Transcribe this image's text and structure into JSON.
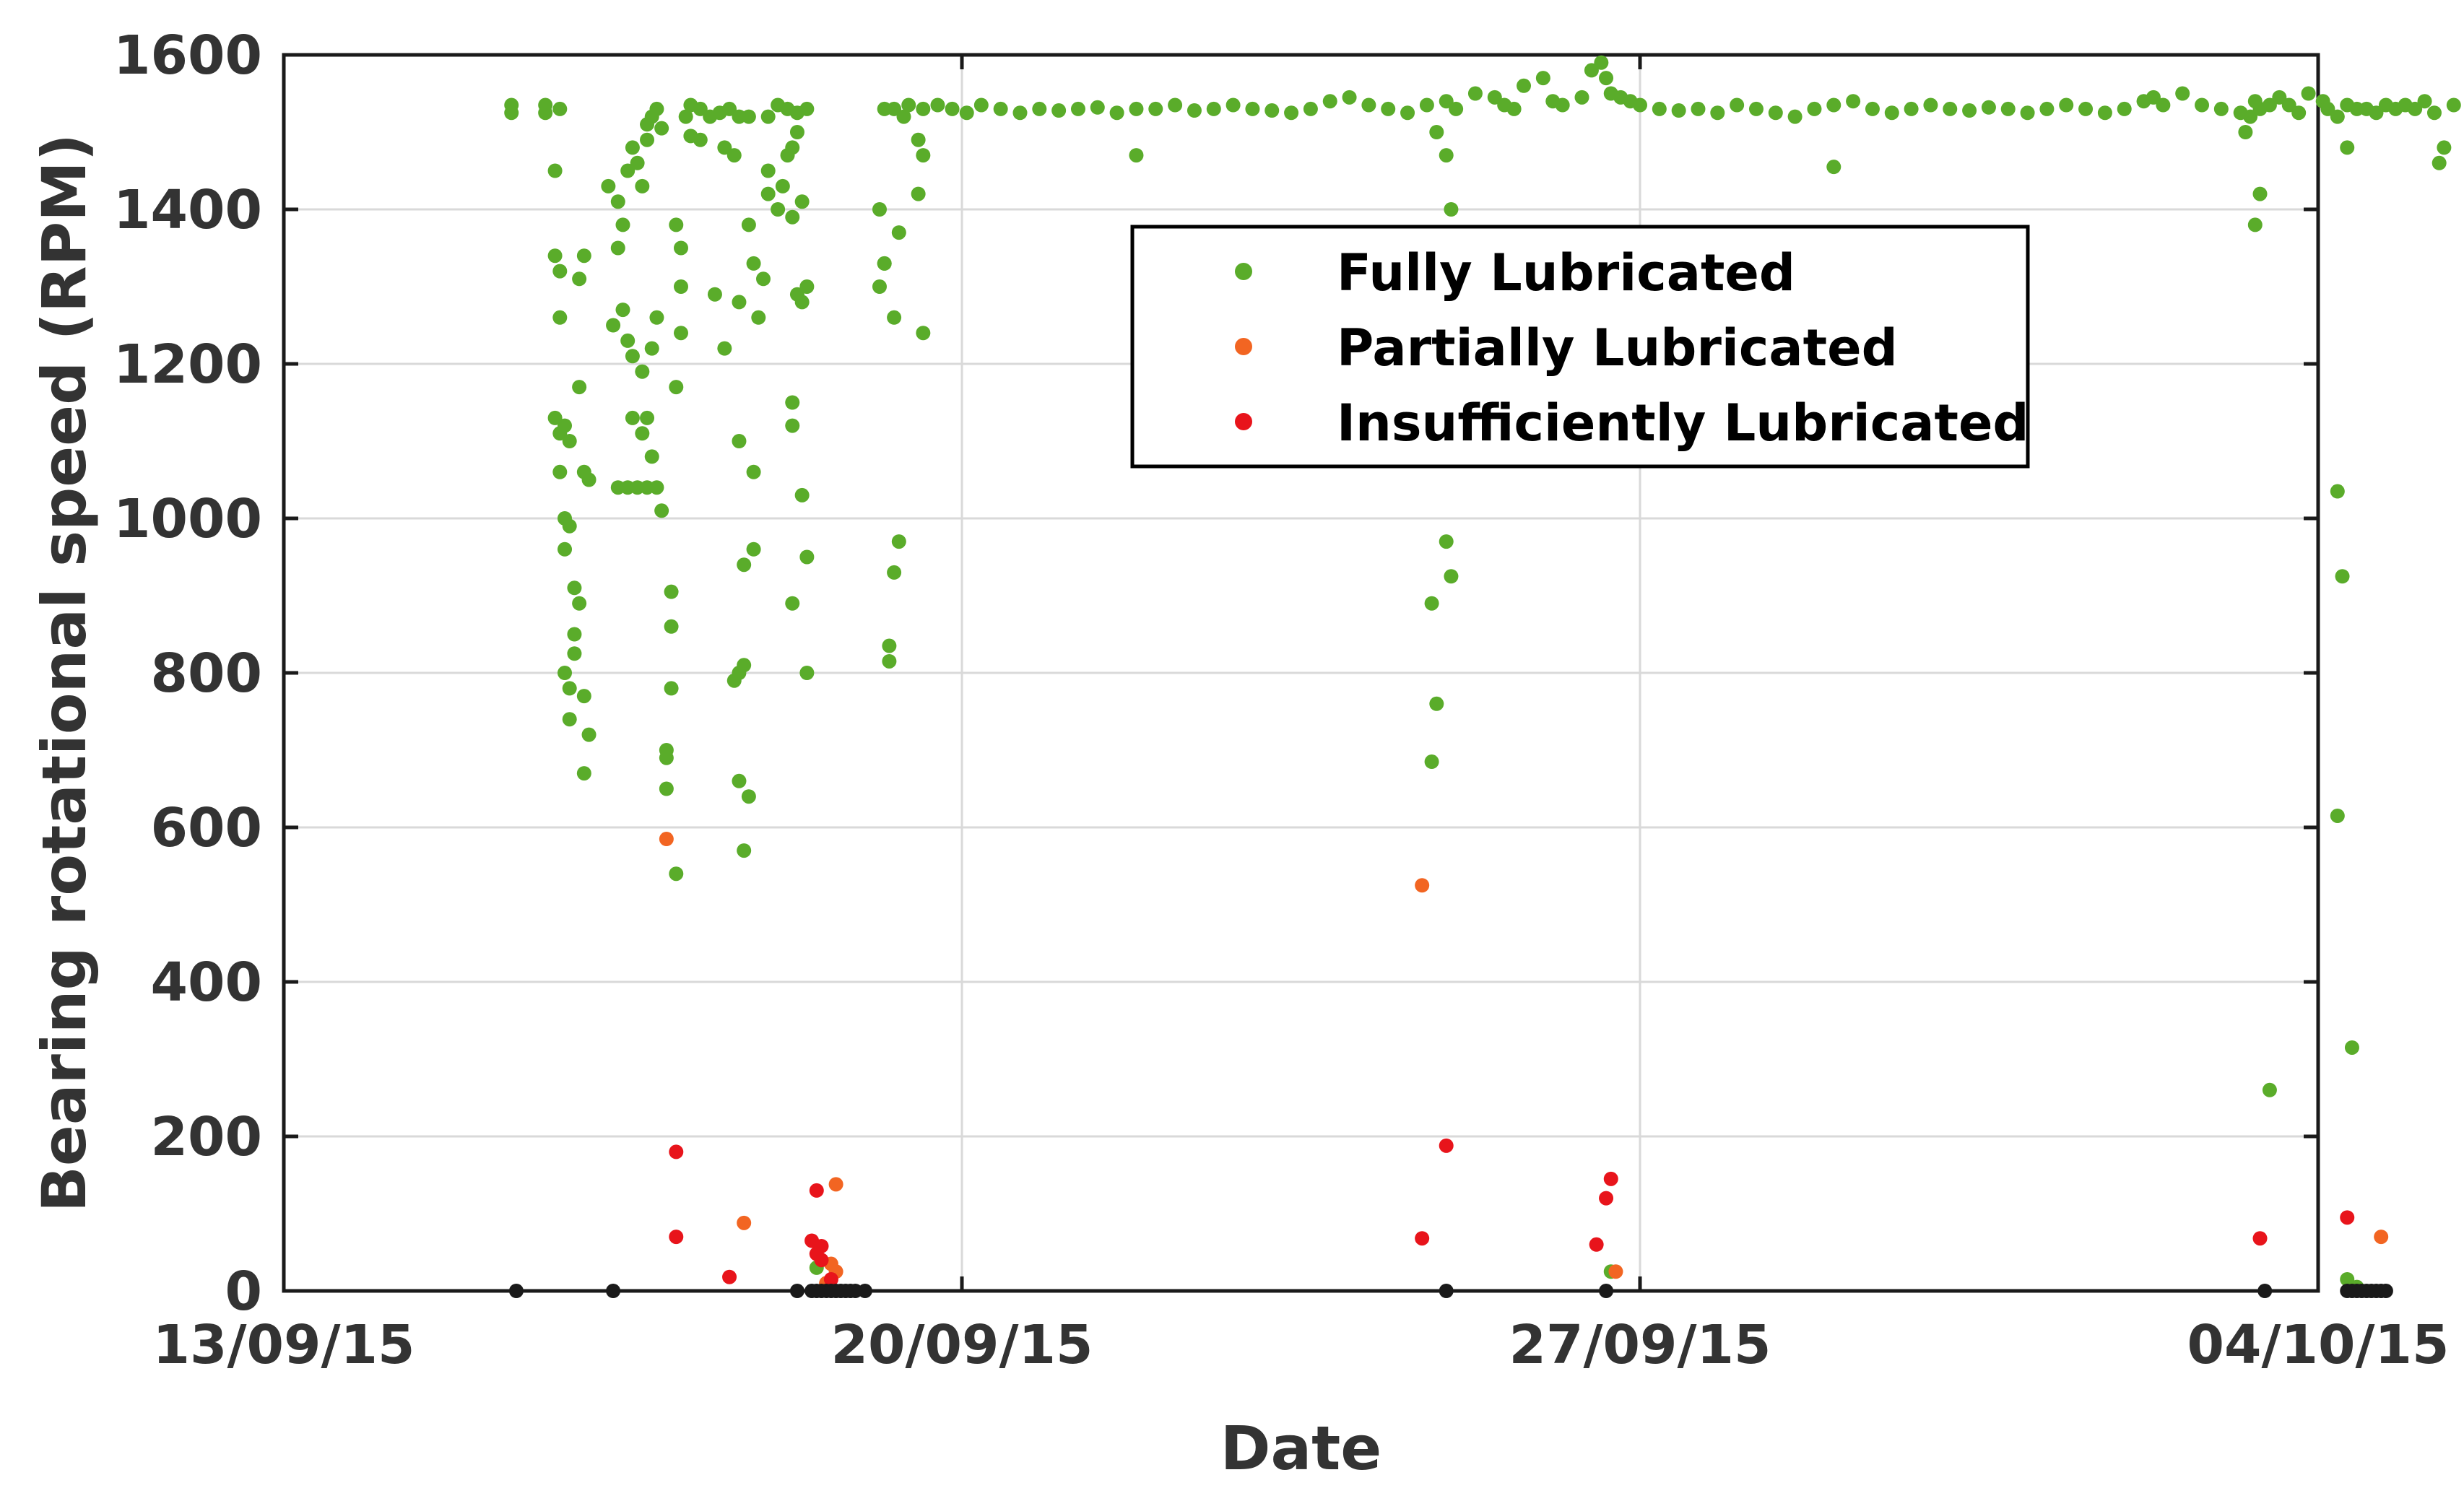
{
  "chart_data": {
    "type": "scatter",
    "title": "",
    "xlabel": "Date",
    "ylabel": "Bearing rotational speed (RPM)",
    "x_unit": "date (dd/mm/yy)",
    "xlim": [
      "13/09/15",
      "04/10/15"
    ],
    "ylim": [
      0,
      1600
    ],
    "x_ticks": [
      "13/09/15",
      "20/09/15",
      "27/09/15",
      "04/10/15"
    ],
    "y_ticks": [
      "0",
      "200",
      "400",
      "600",
      "800",
      "1000",
      "1200",
      "1400",
      "1600"
    ],
    "grid": true,
    "legend_position": "upper-center-right",
    "series": [
      {
        "name": "Fully Lubricated",
        "color": "#5aac2a",
        "points": [
          [
            2.35,
            1535
          ],
          [
            2.35,
            1525
          ],
          [
            2.7,
            1535
          ],
          [
            2.7,
            1525
          ],
          [
            2.85,
            1530
          ],
          [
            2.8,
            1450
          ],
          [
            2.8,
            1340
          ],
          [
            2.85,
            1320
          ],
          [
            2.85,
            1260
          ],
          [
            2.8,
            1130
          ],
          [
            2.85,
            1110
          ],
          [
            2.9,
            1120
          ],
          [
            2.95,
            1100
          ],
          [
            2.85,
            1060
          ],
          [
            2.9,
            1000
          ],
          [
            2.95,
            990
          ],
          [
            2.9,
            960
          ],
          [
            2.9,
            800
          ],
          [
            2.95,
            780
          ],
          [
            2.95,
            740
          ],
          [
            3.0,
            910
          ],
          [
            3.05,
            890
          ],
          [
            3.0,
            850
          ],
          [
            3.0,
            825
          ],
          [
            3.1,
            770
          ],
          [
            3.15,
            720
          ],
          [
            3.1,
            670
          ],
          [
            3.05,
            1310
          ],
          [
            3.1,
            1340
          ],
          [
            3.05,
            1170
          ],
          [
            3.1,
            1060
          ],
          [
            3.15,
            1050
          ],
          [
            3.35,
            1430
          ],
          [
            3.45,
            1410
          ],
          [
            3.5,
            1380
          ],
          [
            3.45,
            1350
          ],
          [
            3.55,
            1450
          ],
          [
            3.6,
            1480
          ],
          [
            3.7,
            1430
          ],
          [
            3.75,
            1510
          ],
          [
            3.8,
            1520
          ],
          [
            3.85,
            1530
          ],
          [
            3.9,
            1505
          ],
          [
            3.75,
            1490
          ],
          [
            3.65,
            1460
          ],
          [
            3.4,
            1250
          ],
          [
            3.5,
            1270
          ],
          [
            3.55,
            1230
          ],
          [
            3.6,
            1210
          ],
          [
            3.7,
            1190
          ],
          [
            3.8,
            1220
          ],
          [
            3.85,
            1260
          ],
          [
            3.6,
            1130
          ],
          [
            3.7,
            1110
          ],
          [
            3.75,
            1130
          ],
          [
            3.8,
            1080
          ],
          [
            3.9,
            1010
          ],
          [
            3.45,
            1040
          ],
          [
            3.55,
            1040
          ],
          [
            3.65,
            1040
          ],
          [
            3.75,
            1040
          ],
          [
            3.85,
            1040
          ],
          [
            4.05,
            1170
          ],
          [
            4.1,
            1300
          ],
          [
            4.1,
            1240
          ],
          [
            4.05,
            1380
          ],
          [
            4.1,
            1350
          ],
          [
            4.0,
            905
          ],
          [
            4.0,
            860
          ],
          [
            4.0,
            780
          ],
          [
            3.95,
            700
          ],
          [
            3.95,
            690
          ],
          [
            3.95,
            650
          ],
          [
            4.05,
            540
          ],
          [
            4.15,
            1520
          ],
          [
            4.2,
            1535
          ],
          [
            4.3,
            1530
          ],
          [
            4.4,
            1520
          ],
          [
            4.5,
            1525
          ],
          [
            4.6,
            1530
          ],
          [
            4.7,
            1520
          ],
          [
            4.8,
            1520
          ],
          [
            4.3,
            1490
          ],
          [
            4.2,
            1495
          ],
          [
            4.55,
            1480
          ],
          [
            4.65,
            1470
          ],
          [
            4.45,
            1290
          ],
          [
            4.55,
            1220
          ],
          [
            4.7,
            1280
          ],
          [
            4.8,
            1380
          ],
          [
            4.85,
            1330
          ],
          [
            4.95,
            1310
          ],
          [
            4.9,
            1260
          ],
          [
            4.7,
            1100
          ],
          [
            4.85,
            1060
          ],
          [
            4.75,
            940
          ],
          [
            4.85,
            960
          ],
          [
            4.65,
            790
          ],
          [
            4.7,
            800
          ],
          [
            4.75,
            810
          ],
          [
            4.7,
            660
          ],
          [
            4.8,
            640
          ],
          [
            4.75,
            570
          ],
          [
            5.0,
            1450
          ],
          [
            5.0,
            1420
          ],
          [
            5.1,
            1400
          ],
          [
            5.15,
            1430
          ],
          [
            5.2,
            1470
          ],
          [
            5.25,
            1480
          ],
          [
            5.3,
            1500
          ],
          [
            5.0,
            1520
          ],
          [
            5.1,
            1535
          ],
          [
            5.2,
            1530
          ],
          [
            5.3,
            1525
          ],
          [
            5.4,
            1530
          ],
          [
            5.25,
            1390
          ],
          [
            5.35,
            1410
          ],
          [
            5.3,
            1290
          ],
          [
            5.35,
            1280
          ],
          [
            5.4,
            1300
          ],
          [
            5.25,
            1150
          ],
          [
            5.25,
            1120
          ],
          [
            5.35,
            1030
          ],
          [
            5.4,
            950
          ],
          [
            5.25,
            890
          ],
          [
            5.4,
            800
          ],
          [
            5.5,
            30
          ],
          [
            6.15,
            1300
          ],
          [
            6.2,
            1330
          ],
          [
            6.35,
            1370
          ],
          [
            6.3,
            1260
          ],
          [
            6.15,
            1400
          ],
          [
            6.2,
            1330
          ],
          [
            6.35,
            970
          ],
          [
            6.3,
            930
          ],
          [
            6.25,
            835
          ],
          [
            6.25,
            815
          ],
          [
            6.4,
            1520
          ],
          [
            6.55,
            1490
          ],
          [
            6.6,
            1470
          ],
          [
            6.55,
            1420
          ],
          [
            6.6,
            1240
          ],
          [
            6.2,
            1530
          ],
          [
            6.3,
            1530
          ],
          [
            6.45,
            1535
          ],
          [
            6.6,
            1530
          ],
          [
            6.75,
            1535
          ],
          [
            6.9,
            1530
          ],
          [
            7.05,
            1525
          ],
          [
            7.2,
            1535
          ],
          [
            7.4,
            1530
          ],
          [
            7.6,
            1525
          ],
          [
            7.8,
            1530
          ],
          [
            8.0,
            1528
          ],
          [
            8.2,
            1530
          ],
          [
            8.4,
            1532
          ],
          [
            8.6,
            1525
          ],
          [
            8.8,
            1530
          ],
          [
            9.0,
            1530
          ],
          [
            9.2,
            1535
          ],
          [
            9.4,
            1528
          ],
          [
            9.6,
            1530
          ],
          [
            9.8,
            1535
          ],
          [
            10.0,
            1530
          ],
          [
            10.2,
            1528
          ],
          [
            10.4,
            1525
          ],
          [
            10.6,
            1530
          ],
          [
            10.8,
            1540
          ],
          [
            11.0,
            1545
          ],
          [
            11.2,
            1535
          ],
          [
            11.4,
            1530
          ],
          [
            11.6,
            1525
          ],
          [
            11.8,
            1535
          ],
          [
            12.0,
            1540
          ],
          [
            12.1,
            1530
          ],
          [
            12.3,
            1550
          ],
          [
            12.5,
            1545
          ],
          [
            12.6,
            1535
          ],
          [
            12.7,
            1530
          ],
          [
            12.8,
            1560
          ],
          [
            13.0,
            1570
          ],
          [
            13.1,
            1540
          ],
          [
            13.2,
            1535
          ],
          [
            13.4,
            1545
          ],
          [
            13.5,
            1580
          ],
          [
            13.6,
            1590
          ],
          [
            13.65,
            1570
          ],
          [
            13.7,
            1550
          ],
          [
            13.8,
            1545
          ],
          [
            13.9,
            1540
          ],
          [
            14.0,
            1535
          ],
          [
            14.2,
            1530
          ],
          [
            14.4,
            1528
          ],
          [
            14.6,
            1530
          ],
          [
            14.8,
            1525
          ],
          [
            15.0,
            1535
          ],
          [
            15.2,
            1530
          ],
          [
            15.4,
            1525
          ],
          [
            15.6,
            1520
          ],
          [
            15.8,
            1530
          ],
          [
            16.0,
            1535
          ],
          [
            16.2,
            1540
          ],
          [
            16.4,
            1530
          ],
          [
            16.6,
            1525
          ],
          [
            16.8,
            1530
          ],
          [
            17.0,
            1535
          ],
          [
            17.2,
            1530
          ],
          [
            17.4,
            1528
          ],
          [
            17.6,
            1532
          ],
          [
            17.8,
            1530
          ],
          [
            18.0,
            1525
          ],
          [
            18.2,
            1530
          ],
          [
            18.4,
            1535
          ],
          [
            18.6,
            1530
          ],
          [
            18.8,
            1525
          ],
          [
            19.0,
            1530
          ],
          [
            19.2,
            1540
          ],
          [
            19.3,
            1545
          ],
          [
            19.4,
            1535
          ],
          [
            19.6,
            1550
          ],
          [
            19.8,
            1535
          ],
          [
            20.0,
            1530
          ],
          [
            20.2,
            1525
          ],
          [
            20.3,
            1520
          ],
          [
            20.35,
            1540
          ],
          [
            20.4,
            1530
          ],
          [
            20.5,
            1535
          ],
          [
            20.6,
            1545
          ],
          [
            20.7,
            1535
          ],
          [
            20.8,
            1525
          ],
          [
            20.9,
            1550
          ],
          [
            21.05,
            1540
          ],
          [
            21.1,
            1530
          ],
          [
            21.2,
            1520
          ],
          [
            21.3,
            1535
          ],
          [
            21.4,
            1530
          ],
          [
            21.5,
            1530
          ],
          [
            21.6,
            1525
          ],
          [
            21.7,
            1535
          ],
          [
            21.8,
            1530
          ],
          [
            21.9,
            1535
          ],
          [
            22.0,
            1530
          ],
          [
            22.1,
            1540
          ],
          [
            22.2,
            1525
          ],
          [
            22.4,
            1535
          ],
          [
            8.8,
            1470
          ],
          [
            11.9,
            1500
          ],
          [
            12.0,
            1470
          ],
          [
            12.05,
            1400
          ],
          [
            16.0,
            1455
          ],
          [
            20.25,
            1500
          ],
          [
            20.4,
            1420
          ],
          [
            20.35,
            1380
          ],
          [
            21.3,
            1480
          ],
          [
            22.3,
            1480
          ],
          [
            22.25,
            1460
          ],
          [
            12.0,
            970
          ],
          [
            12.05,
            925
          ],
          [
            11.85,
            890
          ],
          [
            11.9,
            760
          ],
          [
            11.85,
            685
          ],
          [
            21.2,
            1035
          ],
          [
            21.25,
            925
          ],
          [
            21.2,
            615
          ],
          [
            21.35,
            315
          ],
          [
            20.5,
            260
          ],
          [
            21.3,
            15
          ],
          [
            21.4,
            5
          ],
          [
            13.7,
            25
          ]
        ]
      },
      {
        "name": "Partially Lubricated",
        "color": "#f26522",
        "points": [
          [
            3.95,
            585
          ],
          [
            4.75,
            88
          ],
          [
            5.7,
            138
          ],
          [
            5.65,
            35
          ],
          [
            5.7,
            25
          ],
          [
            5.6,
            10
          ],
          [
            11.75,
            525
          ],
          [
            13.75,
            25
          ],
          [
            21.65,
            70
          ]
        ]
      },
      {
        "name": "Insufficiently Lubricated",
        "color": "#e8141b",
        "points": [
          [
            4.05,
            180
          ],
          [
            4.05,
            70
          ],
          [
            4.6,
            18
          ],
          [
            5.5,
            130
          ],
          [
            5.45,
            65
          ],
          [
            5.55,
            58
          ],
          [
            5.5,
            48
          ],
          [
            5.55,
            40
          ],
          [
            5.65,
            15
          ],
          [
            11.75,
            68
          ],
          [
            12.0,
            188
          ],
          [
            13.55,
            60
          ],
          [
            13.7,
            145
          ],
          [
            13.65,
            120
          ],
          [
            20.4,
            68
          ],
          [
            21.3,
            95
          ]
        ]
      },
      {
        "color": "#1a1a1a",
        "points": [
          [
            2.4,
            0
          ],
          [
            3.4,
            0
          ],
          [
            5.3,
            0
          ],
          [
            5.45,
            0
          ],
          [
            5.5,
            0
          ],
          [
            5.55,
            0
          ],
          [
            5.6,
            0
          ],
          [
            5.65,
            0
          ],
          [
            5.7,
            0
          ],
          [
            5.75,
            0
          ],
          [
            5.8,
            0
          ],
          [
            5.85,
            0
          ],
          [
            5.9,
            0
          ],
          [
            6.0,
            0
          ],
          [
            12.0,
            0
          ],
          [
            13.65,
            0
          ],
          [
            20.45,
            0
          ],
          [
            21.3,
            0
          ],
          [
            21.35,
            0
          ],
          [
            21.4,
            0
          ],
          [
            21.45,
            0
          ],
          [
            21.5,
            0
          ],
          [
            21.55,
            0
          ],
          [
            21.6,
            0
          ],
          [
            21.65,
            0
          ],
          [
            21.7,
            0
          ]
        ]
      }
    ]
  }
}
